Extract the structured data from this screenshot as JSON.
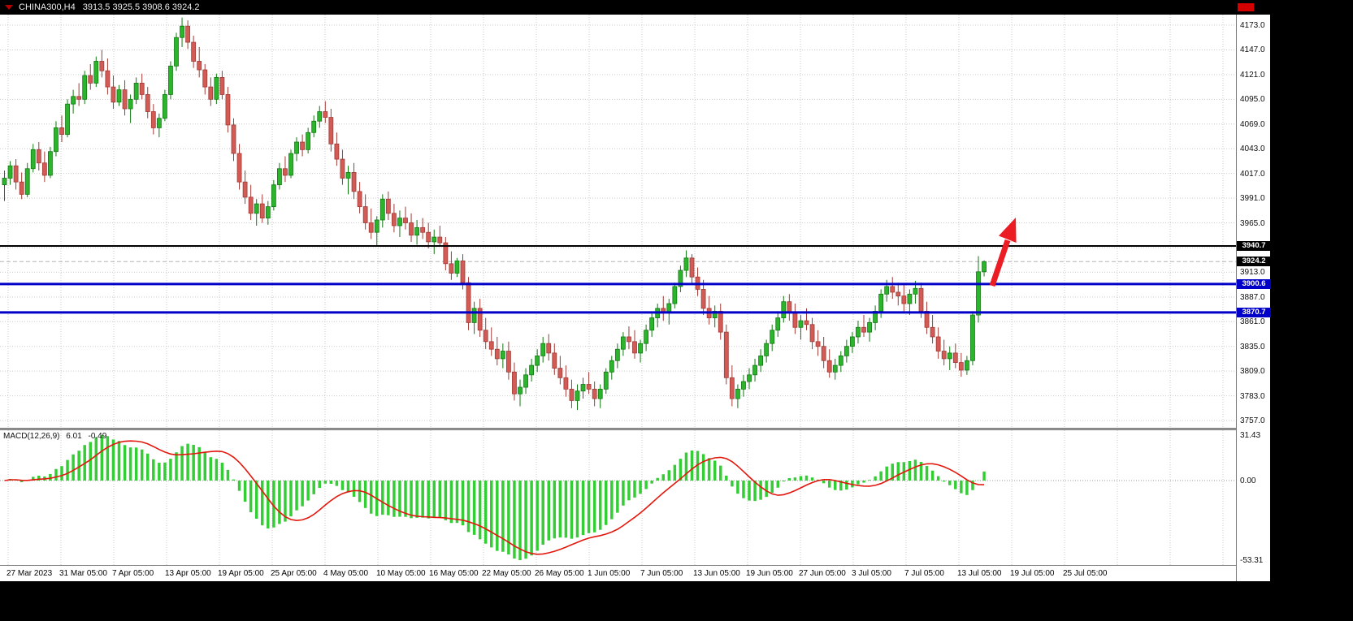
{
  "title_bar": {
    "symbol_period": "CHINA300,H4",
    "ohlc": "3913.5 3925.5 3908.6 3924.2",
    "dropdown_icon": "triangle-down-icon",
    "stop_icon": "red-square-icon",
    "stop_icon_color": "#d40000"
  },
  "chart_data": {
    "type": "candlestick",
    "symbol": "CHINA300",
    "timeframe": "H4",
    "current_candle": {
      "open": 3913.5,
      "high": 3925.5,
      "low": 3908.6,
      "close": 3924.2
    },
    "price_axis": {
      "decimals": 1,
      "ticks": [
        4173,
        4147,
        4121,
        4095,
        4069,
        4043,
        4017,
        3991,
        3965,
        3939,
        3913,
        3887,
        3861,
        3835,
        3809,
        3783,
        3757
      ]
    },
    "time_axis": {
      "labels": [
        "27 Mar 2023",
        "31 Mar 05:00",
        "7 Apr 05:00",
        "13 Apr 05:00",
        "19 Apr 05:00",
        "25 Apr 05:00",
        "4 May 05:00",
        "10 May 05:00",
        "16 May 05:00",
        "22 May 05:00",
        "26 May 05:00",
        "1 Jun 05:00",
        "7 Jun 05:00",
        "13 Jun 05:00",
        "19 Jun 05:00",
        "27 Jun 05:00",
        "3 Jul 05:00",
        "7 Jul 05:00",
        "13 Jul 05:00",
        "19 Jul 05:00",
        "25 Jul 05:00"
      ]
    },
    "horizontal_levels": [
      {
        "value": 3940.7,
        "color": "#000000",
        "width": 2
      },
      {
        "value": 3900.6,
        "color": "#0000c8",
        "width": 3
      },
      {
        "value": 3870.7,
        "color": "#0000c8",
        "width": 3
      }
    ],
    "current_price_badge": {
      "value": 3924.2,
      "color": "#000000"
    },
    "annotation_arrow": {
      "meaning": "projected-up-move",
      "color": "#ec1c24"
    },
    "colors": {
      "background": "#ffffff",
      "grid": "#c9c9c9",
      "up": "#2cb42c",
      "up_stroke": "#127912",
      "down": "#d25b55",
      "down_stroke": "#a13a36"
    },
    "macd": {
      "label": "MACD(12,26,9)",
      "main_value": "6.01",
      "signal_value": "-0.49",
      "params": {
        "fast": 12,
        "slow": 26,
        "signal": 9
      },
      "scale": {
        "max": 31.43,
        "zero": 0,
        "min": -53.31
      },
      "scale_labels": [
        "31.43",
        "0.00",
        "-53.31"
      ],
      "histogram_color": "#35cd35",
      "signal_color": "#e3170d"
    },
    "candles": [
      [
        4005,
        4020,
        3988,
        4012
      ],
      [
        4012,
        4030,
        4005,
        4025
      ],
      [
        4025,
        4032,
        4000,
        4008
      ],
      [
        4008,
        4018,
        3990,
        3995
      ],
      [
        3995,
        4028,
        3992,
        4022
      ],
      [
        4022,
        4048,
        4018,
        4042
      ],
      [
        4042,
        4050,
        4020,
        4028
      ],
      [
        4028,
        4040,
        4008,
        4015
      ],
      [
        4015,
        4045,
        4012,
        4040
      ],
      [
        4040,
        4072,
        4035,
        4065
      ],
      [
        4065,
        4078,
        4050,
        4058
      ],
      [
        4058,
        4095,
        4055,
        4090
      ],
      [
        4090,
        4105,
        4080,
        4098
      ],
      [
        4098,
        4112,
        4088,
        4095
      ],
      [
        4095,
        4125,
        4090,
        4120
      ],
      [
        4120,
        4132,
        4105,
        4112
      ],
      [
        4112,
        4140,
        4108,
        4135
      ],
      [
        4135,
        4147,
        4118,
        4125
      ],
      [
        4125,
        4138,
        4100,
        4108
      ],
      [
        4108,
        4120,
        4085,
        4092
      ],
      [
        4092,
        4110,
        4088,
        4105
      ],
      [
        4105,
        4115,
        4078,
        4085
      ],
      [
        4085,
        4100,
        4070,
        4095
      ],
      [
        4095,
        4118,
        4090,
        4112
      ],
      [
        4112,
        4122,
        4095,
        4100
      ],
      [
        4100,
        4108,
        4075,
        4082
      ],
      [
        4082,
        4090,
        4058,
        4065
      ],
      [
        4065,
        4080,
        4055,
        4075
      ],
      [
        4075,
        4105,
        4072,
        4100
      ],
      [
        4100,
        4135,
        4095,
        4130
      ],
      [
        4130,
        4165,
        4125,
        4160
      ],
      [
        4160,
        4181,
        4150,
        4172
      ],
      [
        4172,
        4178,
        4148,
        4155
      ],
      [
        4155,
        4162,
        4128,
        4135
      ],
      [
        4135,
        4150,
        4118,
        4126
      ],
      [
        4126,
        4132,
        4100,
        4108
      ],
      [
        4108,
        4118,
        4088,
        4095
      ],
      [
        4095,
        4122,
        4090,
        4118
      ],
      [
        4118,
        4125,
        4095,
        4100
      ],
      [
        4100,
        4108,
        4060,
        4068
      ],
      [
        4068,
        4075,
        4030,
        4038
      ],
      [
        4038,
        4048,
        4000,
        4008
      ],
      [
        4008,
        4020,
        3985,
        3992
      ],
      [
        3992,
        4005,
        3968,
        3975
      ],
      [
        3975,
        3990,
        3962,
        3985
      ],
      [
        3985,
        3995,
        3965,
        3970
      ],
      [
        3970,
        3988,
        3963,
        3982
      ],
      [
        3982,
        4010,
        3978,
        4005
      ],
      [
        4005,
        4028,
        4000,
        4022
      ],
      [
        4022,
        4035,
        4008,
        4015
      ],
      [
        4015,
        4042,
        4012,
        4038
      ],
      [
        4038,
        4055,
        4030,
        4050
      ],
      [
        4050,
        4058,
        4035,
        4042
      ],
      [
        4042,
        4065,
        4038,
        4060
      ],
      [
        4060,
        4078,
        4055,
        4072
      ],
      [
        4072,
        4088,
        4065,
        4082
      ],
      [
        4082,
        4093,
        4070,
        4076
      ],
      [
        4076,
        4085,
        4040,
        4048
      ],
      [
        4048,
        4060,
        4025,
        4032
      ],
      [
        4032,
        4042,
        4005,
        4012
      ],
      [
        4012,
        4025,
        3995,
        4018
      ],
      [
        4018,
        4028,
        3990,
        3998
      ],
      [
        3998,
        4008,
        3975,
        3982
      ],
      [
        3982,
        3995,
        3958,
        3965
      ],
      [
        3965,
        3980,
        3948,
        3955
      ],
      [
        3955,
        3972,
        3940,
        3968
      ],
      [
        3968,
        3995,
        3960,
        3990
      ],
      [
        3990,
        3998,
        3968,
        3975
      ],
      [
        3975,
        3985,
        3955,
        3962
      ],
      [
        3962,
        3978,
        3950,
        3970
      ],
      [
        3970,
        3982,
        3958,
        3965
      ],
      [
        3965,
        3975,
        3945,
        3952
      ],
      [
        3952,
        3968,
        3942,
        3960
      ],
      [
        3960,
        3970,
        3948,
        3955
      ],
      [
        3955,
        3965,
        3938,
        3945
      ],
      [
        3945,
        3958,
        3932,
        3950
      ],
      [
        3950,
        3962,
        3940,
        3944
      ],
      [
        3944,
        3950,
        3915,
        3922
      ],
      [
        3922,
        3935,
        3905,
        3912
      ],
      [
        3912,
        3928,
        3908,
        3925
      ],
      [
        3925,
        3932,
        3895,
        3902
      ],
      [
        3902,
        3908,
        3852,
        3860
      ],
      [
        3860,
        3882,
        3848,
        3875
      ],
      [
        3875,
        3885,
        3845,
        3852
      ],
      [
        3852,
        3865,
        3832,
        3840
      ],
      [
        3840,
        3855,
        3825,
        3832
      ],
      [
        3832,
        3845,
        3815,
        3822
      ],
      [
        3822,
        3838,
        3812,
        3830
      ],
      [
        3830,
        3840,
        3800,
        3808
      ],
      [
        3808,
        3818,
        3778,
        3785
      ],
      [
        3785,
        3800,
        3772,
        3792
      ],
      [
        3792,
        3812,
        3785,
        3805
      ],
      [
        3805,
        3822,
        3798,
        3815
      ],
      [
        3815,
        3832,
        3808,
        3825
      ],
      [
        3825,
        3845,
        3818,
        3838
      ],
      [
        3838,
        3848,
        3820,
        3828
      ],
      [
        3828,
        3838,
        3805,
        3812
      ],
      [
        3812,
        3825,
        3795,
        3802
      ],
      [
        3802,
        3815,
        3782,
        3790
      ],
      [
        3790,
        3800,
        3770,
        3778
      ],
      [
        3778,
        3795,
        3768,
        3788
      ],
      [
        3788,
        3802,
        3780,
        3795
      ],
      [
        3795,
        3808,
        3785,
        3790
      ],
      [
        3790,
        3798,
        3772,
        3780
      ],
      [
        3780,
        3795,
        3770,
        3790
      ],
      [
        3790,
        3812,
        3785,
        3808
      ],
      [
        3808,
        3825,
        3800,
        3820
      ],
      [
        3820,
        3838,
        3812,
        3832
      ],
      [
        3832,
        3850,
        3825,
        3845
      ],
      [
        3845,
        3856,
        3832,
        3840
      ],
      [
        3840,
        3852,
        3822,
        3828
      ],
      [
        3828,
        3842,
        3818,
        3838
      ],
      [
        3838,
        3858,
        3830,
        3852
      ],
      [
        3852,
        3870,
        3845,
        3865
      ],
      [
        3865,
        3880,
        3855,
        3875
      ],
      [
        3875,
        3888,
        3862,
        3870
      ],
      [
        3870,
        3885,
        3858,
        3880
      ],
      [
        3880,
        3902,
        3875,
        3898
      ],
      [
        3898,
        3920,
        3892,
        3915
      ],
      [
        3915,
        3936,
        3908,
        3928
      ],
      [
        3928,
        3932,
        3900,
        3908
      ],
      [
        3908,
        3918,
        3888,
        3895
      ],
      [
        3895,
        3905,
        3868,
        3875
      ],
      [
        3875,
        3888,
        3858,
        3865
      ],
      [
        3865,
        3878,
        3855,
        3872
      ],
      [
        3872,
        3880,
        3842,
        3850
      ],
      [
        3850,
        3858,
        3795,
        3802
      ],
      [
        3802,
        3815,
        3772,
        3780
      ],
      [
        3780,
        3795,
        3770,
        3790
      ],
      [
        3790,
        3805,
        3782,
        3798
      ],
      [
        3798,
        3812,
        3790,
        3805
      ],
      [
        3805,
        3822,
        3798,
        3815
      ],
      [
        3815,
        3832,
        3808,
        3825
      ],
      [
        3825,
        3842,
        3818,
        3838
      ],
      [
        3838,
        3858,
        3830,
        3852
      ],
      [
        3852,
        3872,
        3845,
        3865
      ],
      [
        3865,
        3888,
        3860,
        3882
      ],
      [
        3882,
        3890,
        3862,
        3870
      ],
      [
        3870,
        3880,
        3848,
        3855
      ],
      [
        3855,
        3868,
        3842,
        3862
      ],
      [
        3862,
        3875,
        3852,
        3858
      ],
      [
        3858,
        3865,
        3832,
        3840
      ],
      [
        3840,
        3852,
        3825,
        3835
      ],
      [
        3835,
        3845,
        3812,
        3820
      ],
      [
        3820,
        3832,
        3802,
        3808
      ],
      [
        3808,
        3822,
        3800,
        3815
      ],
      [
        3815,
        3830,
        3808,
        3825
      ],
      [
        3825,
        3842,
        3818,
        3835
      ],
      [
        3835,
        3850,
        3828,
        3845
      ],
      [
        3845,
        3862,
        3838,
        3855
      ],
      [
        3855,
        3868,
        3845,
        3850
      ],
      [
        3850,
        3865,
        3840,
        3860
      ],
      [
        3860,
        3878,
        3852,
        3872
      ],
      [
        3872,
        3895,
        3865,
        3890
      ],
      [
        3890,
        3905,
        3882,
        3898
      ],
      [
        3898,
        3908,
        3885,
        3892
      ],
      [
        3892,
        3902,
        3878,
        3888
      ],
      [
        3888,
        3900,
        3872,
        3880
      ],
      [
        3880,
        3895,
        3868,
        3890
      ],
      [
        3890,
        3904,
        3880,
        3896
      ],
      [
        3896,
        3902,
        3865,
        3872
      ],
      [
        3872,
        3882,
        3848,
        3855
      ],
      [
        3855,
        3868,
        3838,
        3845
      ],
      [
        3845,
        3855,
        3822,
        3830
      ],
      [
        3830,
        3842,
        3815,
        3822
      ],
      [
        3822,
        3835,
        3810,
        3828
      ],
      [
        3828,
        3838,
        3812,
        3818
      ],
      [
        3818,
        3828,
        3803,
        3810
      ],
      [
        3810,
        3825,
        3805,
        3820
      ],
      [
        3820,
        3872,
        3815,
        3868
      ],
      [
        3868,
        3930,
        3860,
        3913.5
      ],
      [
        3913.5,
        3925.5,
        3908.6,
        3924.2
      ]
    ]
  }
}
